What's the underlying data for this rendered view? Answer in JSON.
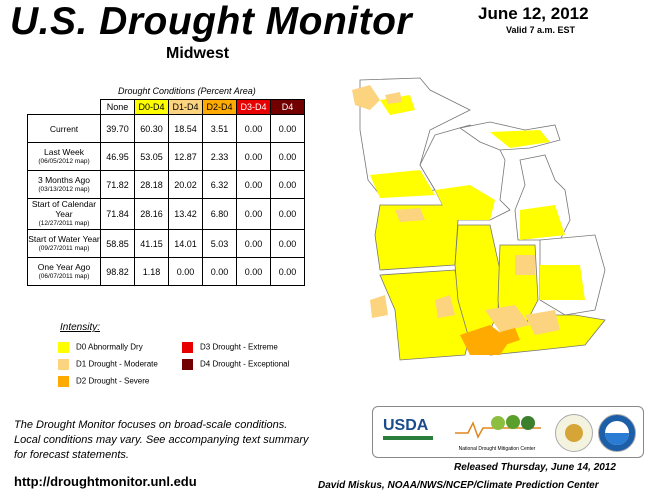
{
  "header": {
    "title": "U.S. Drought Monitor",
    "region": "Midwest",
    "date": "June 12, 2012",
    "valid": "Valid 7 a.m. EST"
  },
  "table": {
    "caption": "Drought Conditions (Percent Area)",
    "columns": [
      "None",
      "D0-D4",
      "D1-D4",
      "D2-D4",
      "D3-D4",
      "D4"
    ],
    "column_colors": [
      "#ffffff",
      "#ffff00",
      "#fcd37f",
      "#ffaa00",
      "#e60000",
      "#730000"
    ],
    "column_text_colors": [
      "#000000",
      "#000000",
      "#000000",
      "#000000",
      "#ffffff",
      "#ffffff"
    ],
    "rows": [
      {
        "label": "Current",
        "sublabel": "",
        "values": [
          "39.70",
          "60.30",
          "18.54",
          "3.51",
          "0.00",
          "0.00"
        ]
      },
      {
        "label": "Last Week",
        "sublabel": "(06/05/2012 map)",
        "values": [
          "46.95",
          "53.05",
          "12.87",
          "2.33",
          "0.00",
          "0.00"
        ]
      },
      {
        "label": "3 Months Ago",
        "sublabel": "(03/13/2012 map)",
        "values": [
          "71.82",
          "28.18",
          "20.02",
          "6.32",
          "0.00",
          "0.00"
        ]
      },
      {
        "label": "Start of Calendar Year",
        "sublabel": "(12/27/2011 map)",
        "values": [
          "71.84",
          "28.16",
          "13.42",
          "6.80",
          "0.00",
          "0.00"
        ]
      },
      {
        "label": "Start of Water Year",
        "sublabel": "(09/27/2011 map)",
        "values": [
          "58.85",
          "41.15",
          "14.01",
          "5.03",
          "0.00",
          "0.00"
        ]
      },
      {
        "label": "One Year Ago",
        "sublabel": "(06/07/2011 map)",
        "values": [
          "98.82",
          "1.18",
          "0.00",
          "0.00",
          "0.00",
          "0.00"
        ]
      }
    ]
  },
  "legend": {
    "title": "Intensity:",
    "items": [
      {
        "label": "D0 Abnormally Dry",
        "color": "#ffff00"
      },
      {
        "label": "D1 Drought - Moderate",
        "color": "#fcd37f"
      },
      {
        "label": "D2 Drought - Severe",
        "color": "#ffaa00"
      },
      {
        "label": "D3 Drought - Extreme",
        "color": "#e60000"
      },
      {
        "label": "D4 Drought - Exceptional",
        "color": "#730000"
      }
    ]
  },
  "footer": {
    "note_lines": [
      "The Drought Monitor focuses on broad-scale conditions.",
      "Local conditions may vary. See accompanying text summary",
      "for forecast statements."
    ],
    "url": "http://droughtmonitor.unl.edu",
    "released": "Released Thursday, June 14, 2012",
    "author": "David Miskus, NOAA/NWS/NCEP/Climate Prediction Center"
  },
  "logos": {
    "usda": "USDA",
    "ndmc": "National Drought Mitigation Center"
  },
  "map_colors": {
    "water": "#ffffff",
    "land": "#ffffff",
    "d0": "#ffff00",
    "d1": "#fcd37f",
    "d2": "#ffaa00",
    "border": "#777777"
  }
}
